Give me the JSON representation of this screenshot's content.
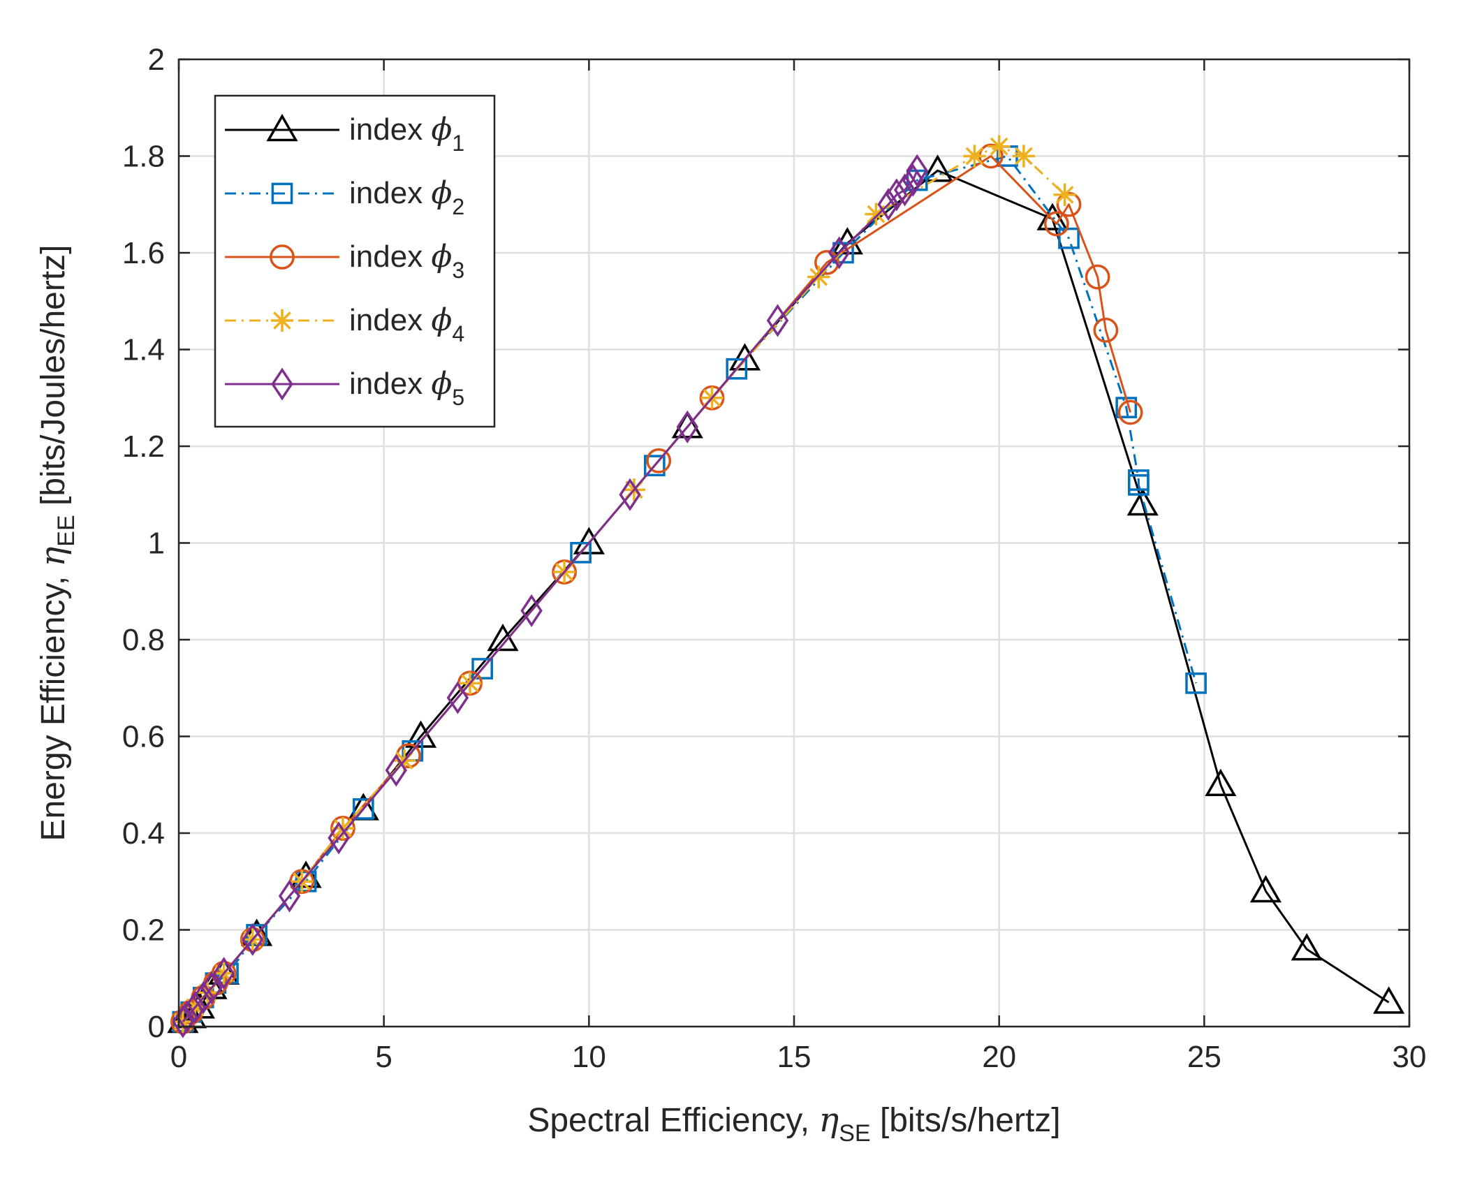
{
  "chart_data": {
    "type": "line",
    "title": "",
    "xlabel": {
      "main": "Spectral Efficiency, ",
      "symbol": "η",
      "subscript": "SE",
      "unit": " [bits/s/hertz]"
    },
    "ylabel": {
      "main": "Energy Efficiency, ",
      "symbol": "η",
      "subscript": "EE",
      "unit": " [bits/Joules/hertz]"
    },
    "xlim": [
      0,
      30
    ],
    "ylim": [
      0,
      2
    ],
    "xticks": [
      0,
      5,
      10,
      15,
      20,
      25,
      30
    ],
    "xtick_labels": [
      "0",
      "5",
      "10",
      "15",
      "20",
      "25",
      "30"
    ],
    "yticks": [
      0,
      0.2,
      0.4,
      0.6,
      0.8,
      1.0,
      1.2,
      1.4,
      1.6,
      1.8,
      2.0
    ],
    "ytick_labels": [
      "0",
      "0.2",
      "0.4",
      "0.6",
      "0.8",
      "1",
      "1.2",
      "1.4",
      "1.6",
      "1.8",
      "2"
    ],
    "grid": true,
    "legend_position": "top-left",
    "series": [
      {
        "name": "index",
        "symbol": "ϕ",
        "subscript": "1",
        "color": "#000000",
        "line_style": "solid",
        "marker": "triangle",
        "x": [
          0.1,
          0.3,
          0.5,
          0.8,
          1.1,
          1.9,
          3.1,
          4.5,
          5.9,
          7.9,
          10.0,
          12.4,
          13.8,
          16.3,
          18.5,
          21.3,
          23.5,
          25.4,
          26.5,
          27.5,
          29.5
        ],
        "y": [
          0.01,
          0.02,
          0.04,
          0.08,
          0.11,
          0.19,
          0.31,
          0.45,
          0.6,
          0.8,
          1.0,
          1.24,
          1.38,
          1.62,
          1.77,
          1.67,
          1.08,
          0.5,
          0.28,
          0.16,
          0.05
        ]
      },
      {
        "name": "index",
        "symbol": "ϕ",
        "subscript": "2",
        "color": "#0072BD",
        "line_style": "dashdot",
        "marker": "square",
        "x": [
          0.1,
          0.3,
          0.6,
          0.9,
          1.2,
          1.9,
          3.1,
          4.5,
          5.7,
          7.4,
          9.8,
          11.6,
          13.6,
          16.2,
          18.0,
          20.2,
          21.7,
          23.1,
          23.4,
          23.4,
          24.8
        ],
        "y": [
          0.01,
          0.03,
          0.06,
          0.09,
          0.11,
          0.19,
          0.3,
          0.45,
          0.57,
          0.74,
          0.98,
          1.16,
          1.36,
          1.6,
          1.75,
          1.8,
          1.63,
          1.28,
          1.13,
          1.12,
          0.71
        ],
        "visible_points": 21
      },
      {
        "name": "index",
        "symbol": "ϕ",
        "subscript": "3",
        "color": "#D95319",
        "line_style": "solid",
        "marker": "circle",
        "x": [
          0.1,
          0.3,
          0.6,
          0.9,
          1.1,
          1.8,
          3.0,
          4.0,
          5.6,
          7.1,
          9.4,
          11.7,
          13.0,
          15.8,
          19.8,
          21.4,
          21.7,
          22.4,
          22.6,
          23.2
        ],
        "y": [
          0.01,
          0.03,
          0.06,
          0.09,
          0.11,
          0.18,
          0.3,
          0.41,
          0.56,
          0.71,
          0.94,
          1.17,
          1.3,
          1.58,
          1.8,
          1.66,
          1.7,
          1.55,
          1.44,
          1.27
        ]
      },
      {
        "name": "index",
        "symbol": "ϕ",
        "subscript": "4",
        "color": "#EDB120",
        "line_style": "dashdot",
        "marker": "asterisk",
        "x": [
          0.1,
          0.4,
          0.7,
          1.1,
          1.8,
          3.0,
          4.0,
          5.5,
          7.1,
          9.4,
          11.1,
          13.0,
          15.6,
          17.0,
          19.4,
          20.0,
          20.6,
          21.6
        ],
        "y": [
          0.01,
          0.04,
          0.07,
          0.11,
          0.18,
          0.3,
          0.41,
          0.55,
          0.71,
          0.94,
          1.11,
          1.3,
          1.55,
          1.68,
          1.8,
          1.82,
          1.8,
          1.72
        ]
      },
      {
        "name": "index",
        "symbol": "ϕ",
        "subscript": "5",
        "color": "#7E2F8E",
        "line_style": "solid",
        "marker": "diamond",
        "x": [
          0.1,
          0.2,
          0.4,
          0.6,
          0.8,
          1.1,
          1.8,
          2.7,
          3.9,
          5.3,
          6.8,
          8.6,
          11.0,
          12.4,
          14.6,
          16.1,
          17.3,
          17.5,
          17.7,
          17.9,
          18.0
        ],
        "y": [
          0.01,
          0.02,
          0.04,
          0.06,
          0.08,
          0.11,
          0.18,
          0.27,
          0.39,
          0.53,
          0.68,
          0.86,
          1.1,
          1.24,
          1.46,
          1.6,
          1.7,
          1.72,
          1.73,
          1.75,
          1.77
        ]
      }
    ]
  }
}
